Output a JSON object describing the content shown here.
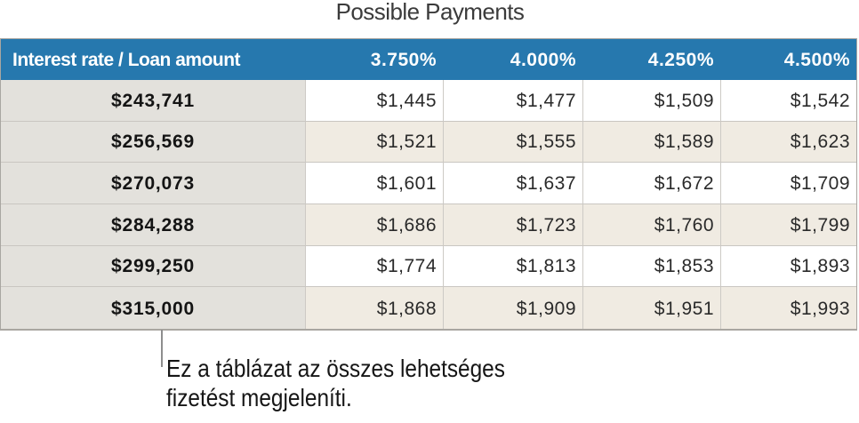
{
  "title": "Possible Payments",
  "table": {
    "header": [
      "Interest rate / Loan amount",
      "3.750%",
      "4.000%",
      "4.250%",
      "4.500%"
    ],
    "rows": [
      {
        "label": "$243,741",
        "values": [
          "$1,445",
          "$1,477",
          "$1,509",
          "$1,542"
        ]
      },
      {
        "label": "$256,569",
        "values": [
          "$1,521",
          "$1,555",
          "$1,589",
          "$1,623"
        ]
      },
      {
        "label": "$270,073",
        "values": [
          "$1,601",
          "$1,637",
          "$1,672",
          "$1,709"
        ]
      },
      {
        "label": "$284,288",
        "values": [
          "$1,686",
          "$1,723",
          "$1,760",
          "$1,799"
        ]
      },
      {
        "label": "$299,250",
        "values": [
          "$1,774",
          "$1,813",
          "$1,853",
          "$1,893"
        ]
      },
      {
        "label": "$315,000",
        "values": [
          "$1,868",
          "$1,909",
          "$1,951",
          "$1,993"
        ]
      }
    ]
  },
  "callout": {
    "line1": "Ez a táblázat az összes lehetséges",
    "line2": "fizetést megjeleníti."
  },
  "colors": {
    "header_background": "#2678ae",
    "header_text": "#ffffff",
    "row_header_background": "#e3e1dc",
    "alternate_row_background": "#f0ebe2",
    "row_background": "#ffffff",
    "grid_line": "#c9c6c1",
    "callout_line": "#8e8e8e"
  },
  "chart_data": {
    "type": "table",
    "title": "Possible Payments",
    "columns": [
      "Interest rate / Loan amount",
      "3.750%",
      "4.000%",
      "4.250%",
      "4.500%"
    ],
    "rows": [
      [
        "$243,741",
        "$1,445",
        "$1,477",
        "$1,509",
        "$1,542"
      ],
      [
        "$256,569",
        "$1,521",
        "$1,555",
        "$1,589",
        "$1,623"
      ],
      [
        "$270,073",
        "$1,601",
        "$1,637",
        "$1,672",
        "$1,709"
      ],
      [
        "$284,288",
        "$1,686",
        "$1,723",
        "$1,760",
        "$1,799"
      ],
      [
        "$299,250",
        "$1,774",
        "$1,813",
        "$1,853",
        "$1,893"
      ],
      [
        "$315,000",
        "$1,868",
        "$1,909",
        "$1,951",
        "$1,993"
      ]
    ],
    "annotation": "Ez a táblázat az összes lehetséges fizetést megjeleníti."
  }
}
